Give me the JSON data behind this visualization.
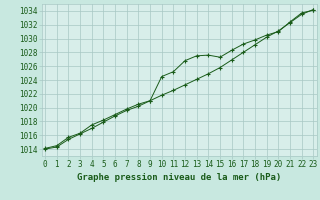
{
  "title": "Graphe pression niveau de la mer (hPa)",
  "background_color": "#c8e8e0",
  "plot_bg_color": "#d8eeea",
  "grid_color": "#a8c8c4",
  "line_color": "#1a5c1a",
  "x_values": [
    0,
    1,
    2,
    3,
    4,
    5,
    6,
    7,
    8,
    9,
    10,
    11,
    12,
    13,
    14,
    15,
    16,
    17,
    18,
    19,
    20,
    21,
    22,
    23
  ],
  "line1": [
    1014.1,
    1014.5,
    1015.7,
    1016.3,
    1017.5,
    1018.2,
    1019.0,
    1019.8,
    1020.5,
    1021.0,
    1024.5,
    1025.2,
    1026.8,
    1027.5,
    1027.6,
    1027.3,
    1028.3,
    1029.2,
    1029.8,
    1030.5,
    1031.0,
    1032.4,
    1033.7,
    1034.1
  ],
  "line2": [
    1014.0,
    1014.3,
    1015.4,
    1016.2,
    1017.0,
    1017.9,
    1018.8,
    1019.6,
    1020.2,
    1021.0,
    1021.8,
    1022.5,
    1023.3,
    1024.1,
    1024.9,
    1025.8,
    1026.9,
    1028.0,
    1029.1,
    1030.2,
    1031.1,
    1032.3,
    1033.5,
    1034.2
  ],
  "ylim": [
    1013,
    1035
  ],
  "xlim": [
    -0.3,
    23.3
  ],
  "yticks": [
    1014,
    1016,
    1018,
    1020,
    1022,
    1024,
    1026,
    1028,
    1030,
    1032,
    1034
  ],
  "xticks": [
    0,
    1,
    2,
    3,
    4,
    5,
    6,
    7,
    8,
    9,
    10,
    11,
    12,
    13,
    14,
    15,
    16,
    17,
    18,
    19,
    20,
    21,
    22,
    23
  ],
  "tick_fontsize": 5.5,
  "label_fontsize": 6.5
}
